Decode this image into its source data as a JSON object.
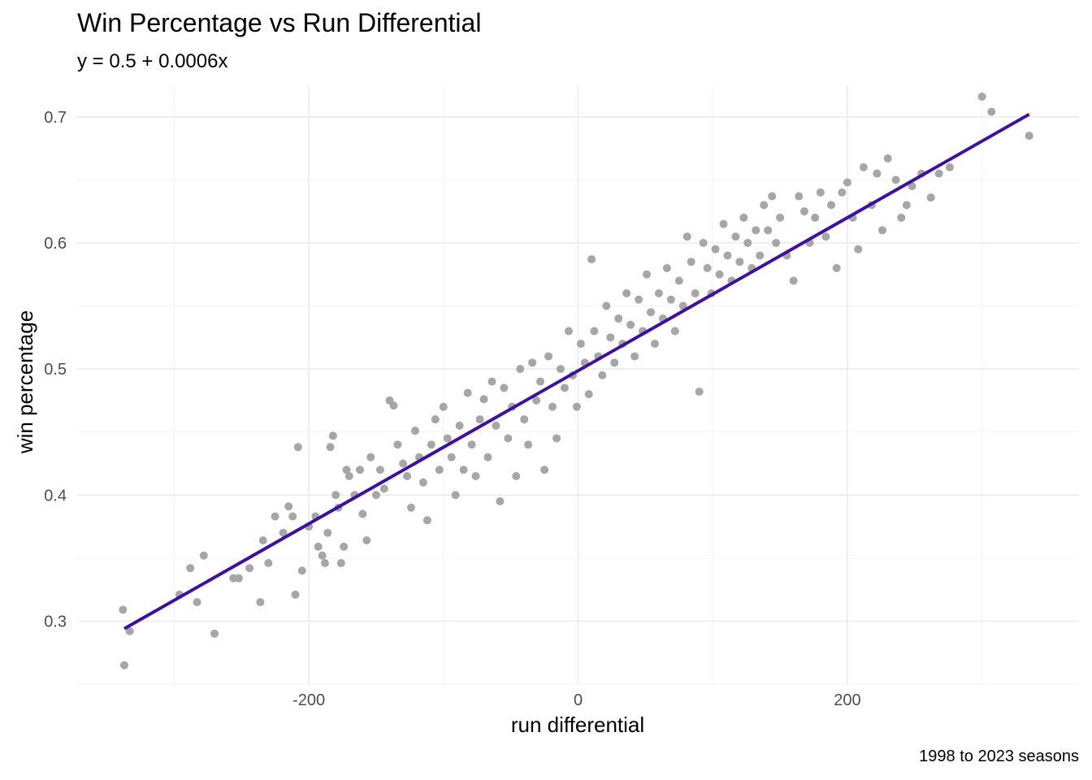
{
  "chart_data": {
    "type": "scatter",
    "title": "Win Percentage vs Run Differential",
    "subtitle": "y = 0.5 + 0.0006x",
    "caption": "1998 to 2023 seasons",
    "xlabel": "run differential",
    "ylabel": "win percentage",
    "xlim": [
      -372,
      372
    ],
    "ylim": [
      0.25,
      0.725
    ],
    "x_ticks": [
      {
        "value": -200,
        "label": "-200"
      },
      {
        "value": 0,
        "label": "0"
      },
      {
        "value": 200,
        "label": "200"
      }
    ],
    "y_ticks": [
      {
        "value": 0.3,
        "label": "0.3"
      },
      {
        "value": 0.4,
        "label": "0.4"
      },
      {
        "value": 0.5,
        "label": "0.5"
      },
      {
        "value": 0.6,
        "label": "0.6"
      },
      {
        "value": 0.7,
        "label": "0.7"
      }
    ],
    "grid": true,
    "point_color": "#a6a6a6",
    "line_color": "#3f0f9e",
    "fit_line": {
      "x": [
        -337,
        335
      ],
      "y": [
        0.294,
        0.702
      ]
    },
    "points": [
      [
        -338,
        0.309
      ],
      [
        -337,
        0.265
      ],
      [
        -333,
        0.292
      ],
      [
        -296,
        0.321
      ],
      [
        -288,
        0.342
      ],
      [
        -283,
        0.315
      ],
      [
        -278,
        0.352
      ],
      [
        -270,
        0.29
      ],
      [
        -256,
        0.334
      ],
      [
        -252,
        0.334
      ],
      [
        -244,
        0.342
      ],
      [
        -236,
        0.315
      ],
      [
        -234,
        0.364
      ],
      [
        -230,
        0.346
      ],
      [
        -225,
        0.383
      ],
      [
        -219,
        0.37
      ],
      [
        -215,
        0.391
      ],
      [
        -212,
        0.383
      ],
      [
        -210,
        0.321
      ],
      [
        -208,
        0.438
      ],
      [
        -205,
        0.34
      ],
      [
        -200,
        0.375
      ],
      [
        -195,
        0.383
      ],
      [
        -193,
        0.359
      ],
      [
        -190,
        0.352
      ],
      [
        -188,
        0.346
      ],
      [
        -186,
        0.37
      ],
      [
        -184,
        0.438
      ],
      [
        -182,
        0.447
      ],
      [
        -180,
        0.4
      ],
      [
        -178,
        0.39
      ],
      [
        -176,
        0.346
      ],
      [
        -174,
        0.359
      ],
      [
        -172,
        0.42
      ],
      [
        -170,
        0.415
      ],
      [
        -166,
        0.4
      ],
      [
        -162,
        0.42
      ],
      [
        -160,
        0.385
      ],
      [
        -157,
        0.364
      ],
      [
        -154,
        0.43
      ],
      [
        -150,
        0.4
      ],
      [
        -147,
        0.42
      ],
      [
        -144,
        0.405
      ],
      [
        -140,
        0.475
      ],
      [
        -137,
        0.471
      ],
      [
        -134,
        0.44
      ],
      [
        -130,
        0.425
      ],
      [
        -127,
        0.415
      ],
      [
        -124,
        0.39
      ],
      [
        -121,
        0.451
      ],
      [
        -118,
        0.43
      ],
      [
        -115,
        0.41
      ],
      [
        -112,
        0.38
      ],
      [
        -109,
        0.44
      ],
      [
        -106,
        0.46
      ],
      [
        -103,
        0.42
      ],
      [
        -100,
        0.47
      ],
      [
        -97,
        0.445
      ],
      [
        -94,
        0.43
      ],
      [
        -91,
        0.4
      ],
      [
        -88,
        0.455
      ],
      [
        -85,
        0.42
      ],
      [
        -82,
        0.481
      ],
      [
        -79,
        0.44
      ],
      [
        -76,
        0.415
      ],
      [
        -73,
        0.46
      ],
      [
        -70,
        0.476
      ],
      [
        -67,
        0.43
      ],
      [
        -64,
        0.49
      ],
      [
        -61,
        0.455
      ],
      [
        -58,
        0.395
      ],
      [
        -55,
        0.485
      ],
      [
        -52,
        0.445
      ],
      [
        -49,
        0.47
      ],
      [
        -46,
        0.415
      ],
      [
        -43,
        0.5
      ],
      [
        -40,
        0.46
      ],
      [
        -37,
        0.44
      ],
      [
        -34,
        0.505
      ],
      [
        -31,
        0.475
      ],
      [
        -28,
        0.49
      ],
      [
        -25,
        0.42
      ],
      [
        -22,
        0.51
      ],
      [
        -19,
        0.47
      ],
      [
        -16,
        0.445
      ],
      [
        -13,
        0.5
      ],
      [
        -10,
        0.485
      ],
      [
        -7,
        0.53
      ],
      [
        -4,
        0.495
      ],
      [
        -1,
        0.47
      ],
      [
        2,
        0.52
      ],
      [
        5,
        0.505
      ],
      [
        8,
        0.48
      ],
      [
        10,
        0.587
      ],
      [
        12,
        0.53
      ],
      [
        15,
        0.51
      ],
      [
        18,
        0.495
      ],
      [
        21,
        0.55
      ],
      [
        24,
        0.525
      ],
      [
        27,
        0.505
      ],
      [
        30,
        0.54
      ],
      [
        33,
        0.52
      ],
      [
        36,
        0.56
      ],
      [
        39,
        0.535
      ],
      [
        42,
        0.51
      ],
      [
        45,
        0.555
      ],
      [
        48,
        0.53
      ],
      [
        51,
        0.575
      ],
      [
        54,
        0.545
      ],
      [
        57,
        0.52
      ],
      [
        60,
        0.56
      ],
      [
        63,
        0.54
      ],
      [
        66,
        0.58
      ],
      [
        69,
        0.555
      ],
      [
        72,
        0.53
      ],
      [
        75,
        0.57
      ],
      [
        78,
        0.55
      ],
      [
        81,
        0.605
      ],
      [
        84,
        0.585
      ],
      [
        87,
        0.56
      ],
      [
        90,
        0.482
      ],
      [
        93,
        0.6
      ],
      [
        96,
        0.58
      ],
      [
        99,
        0.56
      ],
      [
        102,
        0.595
      ],
      [
        105,
        0.575
      ],
      [
        108,
        0.615
      ],
      [
        111,
        0.59
      ],
      [
        114,
        0.57
      ],
      [
        117,
        0.605
      ],
      [
        120,
        0.585
      ],
      [
        123,
        0.62
      ],
      [
        126,
        0.6
      ],
      [
        129,
        0.58
      ],
      [
        132,
        0.61
      ],
      [
        135,
        0.59
      ],
      [
        138,
        0.63
      ],
      [
        141,
        0.61
      ],
      [
        144,
        0.637
      ],
      [
        147,
        0.6
      ],
      [
        150,
        0.62
      ],
      [
        155,
        0.59
      ],
      [
        160,
        0.57
      ],
      [
        164,
        0.637
      ],
      [
        168,
        0.625
      ],
      [
        172,
        0.6
      ],
      [
        176,
        0.62
      ],
      [
        180,
        0.64
      ],
      [
        184,
        0.605
      ],
      [
        188,
        0.63
      ],
      [
        192,
        0.58
      ],
      [
        196,
        0.64
      ],
      [
        200,
        0.648
      ],
      [
        204,
        0.62
      ],
      [
        208,
        0.595
      ],
      [
        212,
        0.66
      ],
      [
        218,
        0.63
      ],
      [
        222,
        0.655
      ],
      [
        226,
        0.61
      ],
      [
        230,
        0.667
      ],
      [
        236,
        0.65
      ],
      [
        240,
        0.62
      ],
      [
        244,
        0.63
      ],
      [
        248,
        0.645
      ],
      [
        255,
        0.655
      ],
      [
        262,
        0.636
      ],
      [
        268,
        0.655
      ],
      [
        276,
        0.66
      ],
      [
        300,
        0.716
      ],
      [
        307,
        0.704
      ],
      [
        335,
        0.685
      ]
    ]
  }
}
